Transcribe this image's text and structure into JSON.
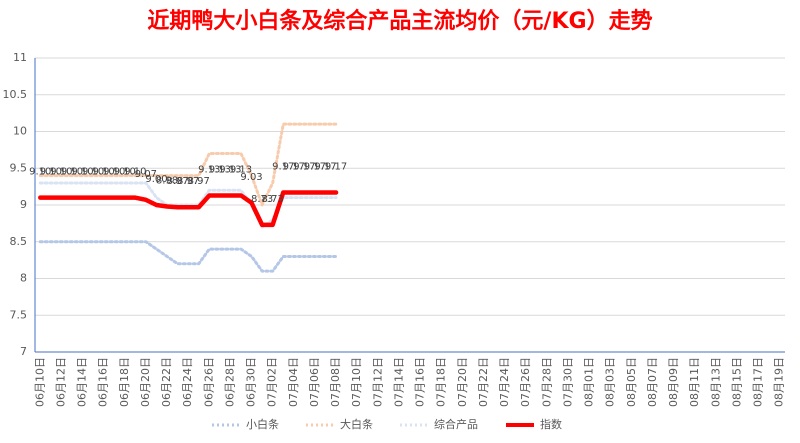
{
  "chart_data": {
    "type": "line",
    "title": "近期鸭大小白条及综合产品主流均价（元/KG）走势",
    "categories": [
      "06月10日",
      null,
      "06月12日",
      null,
      "06月14日",
      null,
      "06月16日",
      null,
      "06月18日",
      null,
      "06月20日",
      null,
      "06月22日",
      null,
      "06月24日",
      null,
      "06月26日",
      null,
      "06月28日",
      null,
      "06月30日",
      null,
      "07月02日",
      null,
      "07月04日",
      null,
      "07月06日",
      null,
      "07月08日",
      null,
      "07月10日",
      null,
      "07月12日",
      null,
      "07月14日",
      null,
      "07月16日",
      null,
      "07月18日",
      null,
      "07月20日",
      null,
      "07月22日",
      null,
      "07月24日",
      null,
      "07月26日",
      null,
      "07月28日",
      null,
      "07月30日",
      null,
      "08月01日",
      null,
      "08月03日",
      null,
      "08月05日",
      null,
      "08月07日",
      null,
      "08月09日",
      null,
      "08月11日",
      null,
      "08月13日",
      null,
      "08月15日",
      null,
      "08月17日",
      null,
      "08月19日"
    ],
    "series": [
      {
        "name": "小白条",
        "color": "#b4c7e7",
        "style": "dotted",
        "values": [
          8.5,
          8.5,
          8.5,
          8.5,
          8.5,
          8.5,
          8.5,
          8.5,
          8.5,
          8.5,
          8.5,
          8.4,
          8.3,
          8.2,
          8.2,
          8.2,
          8.4,
          8.4,
          8.4,
          8.4,
          8.3,
          8.1,
          8.1,
          8.3,
          8.3,
          8.3,
          8.3,
          8.3,
          8.3,
          null,
          null,
          null,
          null,
          null,
          null,
          null,
          null,
          null,
          null,
          null,
          null,
          null,
          null,
          null,
          null,
          null,
          null,
          null,
          null,
          null,
          null,
          null,
          null,
          null,
          null,
          null,
          null,
          null,
          null,
          null,
          null,
          null,
          null,
          null,
          null,
          null,
          null,
          null,
          null,
          null,
          null
        ]
      },
      {
        "name": "大白条",
        "color": "#f8cbad",
        "style": "dotted",
        "values": [
          9.4,
          9.4,
          9.4,
          9.4,
          9.4,
          9.4,
          9.4,
          9.4,
          9.4,
          9.4,
          9.4,
          9.4,
          9.4,
          9.4,
          9.4,
          9.4,
          9.7,
          9.7,
          9.7,
          9.7,
          9.4,
          9.0,
          9.3,
          10.1,
          10.1,
          10.1,
          10.1,
          10.1,
          10.1,
          null,
          null,
          null,
          null,
          null,
          null,
          null,
          null,
          null,
          null,
          null,
          null,
          null,
          null,
          null,
          null,
          null,
          null,
          null,
          null,
          null,
          null,
          null,
          null,
          null,
          null,
          null,
          null,
          null,
          null,
          null,
          null,
          null,
          null,
          null,
          null,
          null,
          null,
          null,
          null,
          null,
          null
        ]
      },
      {
        "name": "综合产品",
        "color": "#dae3f3",
        "style": "dotted",
        "values": [
          9.3,
          9.3,
          9.3,
          9.3,
          9.3,
          9.3,
          9.3,
          9.3,
          9.3,
          9.3,
          9.3,
          9.1,
          9.0,
          9.0,
          9.0,
          9.0,
          9.2,
          9.2,
          9.2,
          9.2,
          9.0,
          8.7,
          8.8,
          9.1,
          9.1,
          9.1,
          9.1,
          9.1,
          9.1,
          null,
          null,
          null,
          null,
          null,
          null,
          null,
          null,
          null,
          null,
          null,
          null,
          null,
          null,
          null,
          null,
          null,
          null,
          null,
          null,
          null,
          null,
          null,
          null,
          null,
          null,
          null,
          null,
          null,
          null,
          null,
          null,
          null,
          null,
          null,
          null,
          null,
          null,
          null,
          null,
          null,
          null
        ]
      },
      {
        "name": "指数",
        "color": "#ff0000",
        "style": "solid",
        "labels": true,
        "values": [
          9.1,
          9.1,
          9.1,
          9.1,
          9.1,
          9.1,
          9.1,
          9.1,
          9.1,
          9.1,
          9.07,
          9.0,
          8.98,
          8.97,
          8.97,
          8.97,
          9.13,
          9.13,
          9.13,
          9.13,
          9.03,
          8.73,
          8.73,
          9.17,
          9.17,
          9.17,
          9.17,
          9.17,
          9.17,
          null,
          null,
          null,
          null,
          null,
          null,
          null,
          null,
          null,
          null,
          null,
          null,
          null,
          null,
          null,
          null,
          null,
          null,
          null,
          null,
          null,
          null,
          null,
          null,
          null,
          null,
          null,
          null,
          null,
          null,
          null,
          null,
          null,
          null,
          null,
          null,
          null,
          null,
          null,
          null,
          null,
          null
        ],
        "value_labels": [
          "9.10",
          "9.10",
          "9.10",
          "9.10",
          "9.10",
          "9.10",
          "9.10",
          "9.10",
          "9.10",
          "9.10",
          "9.07",
          "9.00",
          "8.98",
          "8.97",
          "8.97",
          "8.97",
          "9.13",
          "9.13",
          "9.13",
          "9.13",
          "9.03",
          "8.73",
          "8.73",
          "9.17",
          "9.17",
          "9.17",
          "9.17",
          "9.17",
          "9.17",
          null,
          null,
          null,
          null,
          null,
          null,
          null,
          null,
          null,
          null,
          null,
          null,
          null,
          null,
          null,
          null,
          null,
          null,
          null,
          null,
          null,
          null,
          null,
          null,
          null,
          null,
          null,
          null,
          null,
          null,
          null,
          null,
          null,
          null,
          null,
          null,
          null,
          null,
          null,
          null,
          null,
          null
        ]
      }
    ],
    "ylim": [
      7,
      11
    ],
    "yticks": [
      7,
      7.5,
      8,
      8.5,
      9,
      9.5,
      10,
      10.5,
      11
    ],
    "grid": true,
    "legend": "bottom"
  }
}
